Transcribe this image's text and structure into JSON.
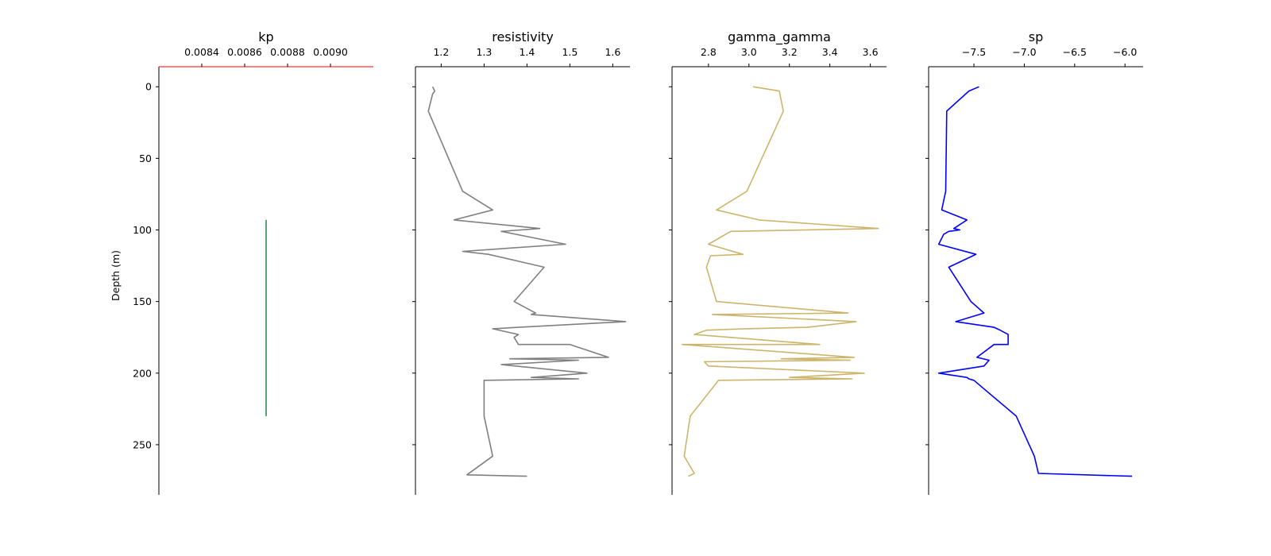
{
  "chart_data": {
    "type": "line",
    "y_label": "Depth (m)",
    "y_axis": {
      "inverted": true,
      "ylim": [
        -14,
        285
      ],
      "ticks": [
        0,
        50,
        100,
        150,
        200,
        250
      ]
    },
    "grid": false,
    "tracks": [
      {
        "name": "kp",
        "title": "kp",
        "color": "#2e8b57",
        "axis_color": "#ff0000",
        "xlim": [
          0.0082,
          0.0092
        ],
        "xticks": [
          0.0084,
          0.0086,
          0.0088,
          0.009
        ],
        "xtick_labels": [
          "0.0084",
          "0.0086",
          "0.0088",
          "0.0090"
        ],
        "points": [
          [
            0.0087,
            93
          ],
          [
            0.0087,
            230
          ]
        ]
      },
      {
        "name": "resistivity",
        "title": "resistivity",
        "color": "#808080",
        "xlim": [
          1.14,
          1.64
        ],
        "xticks": [
          1.2,
          1.3,
          1.4,
          1.5,
          1.6
        ],
        "xtick_labels": [
          "1.2",
          "1.3",
          "1.4",
          "1.5",
          "1.6"
        ],
        "points": [
          [
            1.18,
            0
          ],
          [
            1.185,
            3
          ],
          [
            1.18,
            5
          ],
          [
            1.17,
            17
          ],
          [
            1.25,
            73
          ],
          [
            1.32,
            86
          ],
          [
            1.23,
            93
          ],
          [
            1.43,
            99
          ],
          [
            1.34,
            101
          ],
          [
            1.49,
            110
          ],
          [
            1.25,
            115
          ],
          [
            1.31,
            117
          ],
          [
            1.44,
            126
          ],
          [
            1.37,
            150
          ],
          [
            1.42,
            158
          ],
          [
            1.41,
            159
          ],
          [
            1.63,
            164
          ],
          [
            1.38,
            168
          ],
          [
            1.32,
            169
          ],
          [
            1.38,
            173
          ],
          [
            1.37,
            175
          ],
          [
            1.38,
            180
          ],
          [
            1.5,
            180
          ],
          [
            1.59,
            189
          ],
          [
            1.36,
            190
          ],
          [
            1.52,
            191
          ],
          [
            1.34,
            194
          ],
          [
            1.54,
            200
          ],
          [
            1.41,
            203
          ],
          [
            1.52,
            204
          ],
          [
            1.3,
            205
          ],
          [
            1.3,
            230
          ],
          [
            1.32,
            258
          ],
          [
            1.26,
            271
          ],
          [
            1.4,
            272
          ]
        ]
      },
      {
        "name": "gamma_gamma",
        "title": "gamma_gamma",
        "color": "#ccb56b",
        "xlim": [
          2.62,
          3.68
        ],
        "xticks": [
          2.8,
          3.0,
          3.2,
          3.4,
          3.6
        ],
        "xtick_labels": [
          "2.8",
          "3.0",
          "3.2",
          "3.4",
          "3.6"
        ],
        "points": [
          [
            3.02,
            0
          ],
          [
            3.15,
            3
          ],
          [
            3.17,
            17
          ],
          [
            2.99,
            73
          ],
          [
            2.84,
            86
          ],
          [
            3.05,
            93
          ],
          [
            3.64,
            99
          ],
          [
            2.91,
            101
          ],
          [
            2.8,
            110
          ],
          [
            2.97,
            117
          ],
          [
            2.81,
            118
          ],
          [
            2.79,
            126
          ],
          [
            2.84,
            150
          ],
          [
            3.49,
            158
          ],
          [
            2.82,
            159
          ],
          [
            3.53,
            164
          ],
          [
            3.29,
            168
          ],
          [
            2.98,
            169
          ],
          [
            2.79,
            170
          ],
          [
            2.73,
            173
          ],
          [
            3.35,
            180
          ],
          [
            2.67,
            180
          ],
          [
            3.52,
            189
          ],
          [
            3.16,
            190
          ],
          [
            3.5,
            191
          ],
          [
            2.78,
            192
          ],
          [
            2.8,
            195
          ],
          [
            3.57,
            200
          ],
          [
            3.2,
            203
          ],
          [
            3.51,
            204
          ],
          [
            2.85,
            205
          ],
          [
            2.71,
            230
          ],
          [
            2.68,
            258
          ],
          [
            2.73,
            270
          ],
          [
            2.7,
            272
          ]
        ]
      },
      {
        "name": "sp",
        "title": "sp",
        "color": "#0000ff",
        "xlim": [
          -7.95,
          -5.82
        ],
        "xticks": [
          -7.5,
          -7.0,
          -6.5,
          -6.0
        ],
        "xtick_labels": [
          "−7.5",
          "−7.0",
          "−6.5",
          "−6.0"
        ],
        "points": [
          [
            -7.45,
            0
          ],
          [
            -7.55,
            3
          ],
          [
            -7.77,
            17
          ],
          [
            -7.78,
            73
          ],
          [
            -7.82,
            86
          ],
          [
            -7.57,
            93
          ],
          [
            -7.7,
            99
          ],
          [
            -7.64,
            100
          ],
          [
            -7.75,
            101
          ],
          [
            -7.8,
            103
          ],
          [
            -7.85,
            110
          ],
          [
            -7.48,
            117
          ],
          [
            -7.51,
            118
          ],
          [
            -7.75,
            126
          ],
          [
            -7.53,
            150
          ],
          [
            -7.4,
            158
          ],
          [
            -7.68,
            164
          ],
          [
            -7.3,
            168
          ],
          [
            -7.27,
            169
          ],
          [
            -7.24,
            170
          ],
          [
            -7.16,
            173
          ],
          [
            -7.16,
            180
          ],
          [
            -7.3,
            180
          ],
          [
            -7.47,
            189
          ],
          [
            -7.35,
            191
          ],
          [
            -7.4,
            195
          ],
          [
            -7.85,
            200
          ],
          [
            -7.57,
            203
          ],
          [
            -7.55,
            204
          ],
          [
            -7.5,
            205
          ],
          [
            -7.08,
            230
          ],
          [
            -6.9,
            258
          ],
          [
            -6.86,
            270
          ],
          [
            -5.93,
            272
          ]
        ]
      }
    ]
  }
}
